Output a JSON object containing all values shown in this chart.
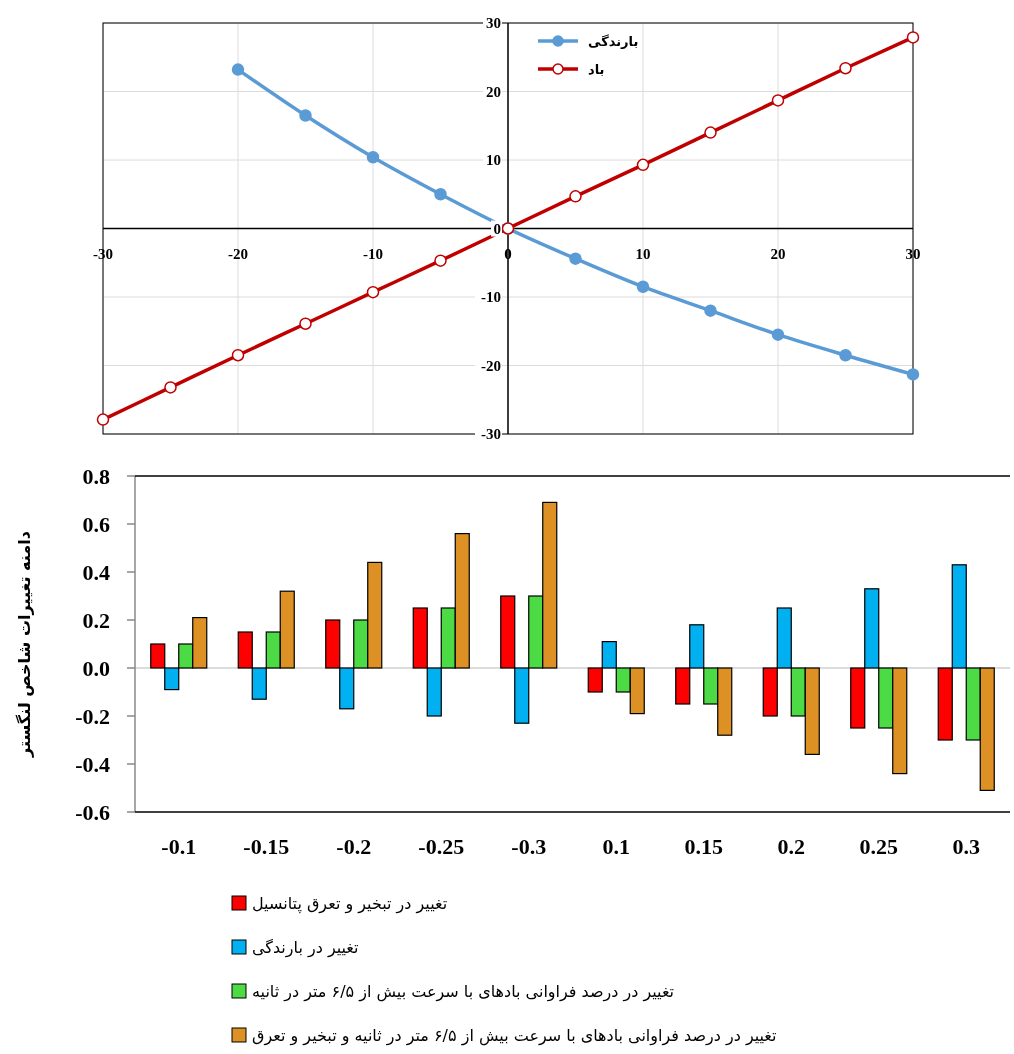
{
  "chart_data": [
    {
      "type": "line",
      "xlim": [
        -30,
        30
      ],
      "ylim": [
        -30,
        30
      ],
      "xticks": [
        -30,
        -20,
        -10,
        0,
        10,
        20,
        30
      ],
      "yticks": [
        -30,
        -20,
        -10,
        0,
        10,
        20,
        30
      ],
      "grid": true,
      "legend": "top",
      "marker": "circle",
      "line_style": "solid",
      "series": [
        {
          "name": "بارندگی",
          "color": "#5b9bd5",
          "x": [
            -20,
            -15,
            -10,
            -5,
            0,
            5,
            10,
            15,
            20,
            25,
            30
          ],
          "values": [
            23.2,
            16.5,
            10.4,
            5.0,
            0,
            -4.4,
            -8.5,
            -12.0,
            -15.5,
            -18.5,
            -21.3
          ]
        },
        {
          "name": "باد",
          "color": "#c00000",
          "x": [
            -30,
            -25,
            -20,
            -15,
            -10,
            -5,
            0,
            5,
            10,
            15,
            20,
            25,
            30
          ],
          "values": [
            -27.9,
            -23.2,
            -18.5,
            -13.9,
            -9.3,
            -4.7,
            0,
            4.7,
            9.3,
            14.0,
            18.7,
            23.4,
            27.9
          ]
        }
      ]
    },
    {
      "type": "bar",
      "ylabel": "دامنه تغییرات شاخص لنگستر",
      "categories": [
        "-0.1",
        "-0.15",
        "-0.2",
        "-0.25",
        "-0.3",
        "0.1",
        "0.15",
        "0.2",
        "0.25",
        "0.3"
      ],
      "ylim": [
        -0.6,
        0.8
      ],
      "yticks": [
        {
          "value": -0.6,
          "label": "-0.6"
        },
        {
          "value": -0.4,
          "label": "-0.4"
        },
        {
          "value": -0.2,
          "label": "-0.2"
        },
        {
          "value": 0,
          "label": "0.0"
        },
        {
          "value": 0.2,
          "label": "0.2"
        },
        {
          "value": 0.4,
          "label": "0.4"
        },
        {
          "value": 0.6,
          "label": "0.6"
        },
        {
          "value": 0.8,
          "label": "0.8"
        }
      ],
      "grid": false,
      "legend": "bottom",
      "ref_lines": [
        {
          "axis": "y",
          "value": 0,
          "color": "#d0d0d0"
        }
      ],
      "series": [
        {
          "name": "تغییر در تبخیر و تعرق پتانسیل",
          "color": "#ff0000",
          "values": [
            0.1,
            0.15,
            0.2,
            0.25,
            0.3,
            -0.1,
            -0.15,
            -0.2,
            -0.25,
            -0.3
          ]
        },
        {
          "name": "تغییر در بارندگی",
          "color": "#00b0f0",
          "values": [
            -0.09,
            -0.13,
            -0.17,
            -0.2,
            -0.23,
            0.11,
            0.18,
            0.25,
            0.33,
            0.43
          ]
        },
        {
          "name": "تغییر در درصد فراوانی بادهای با سرعت بیش از ۶/۵ متر در ثانیه",
          "color": "#4cdb44",
          "values": [
            0.1,
            0.15,
            0.2,
            0.25,
            0.3,
            -0.1,
            -0.15,
            -0.2,
            -0.25,
            -0.3
          ]
        },
        {
          "name": "تغییر در درصد فراوانی بادهای با سرعت بیش از ۶/۵ متر در ثانیه و تبخیر و تعرق",
          "color": "#dd9125",
          "values": [
            0.21,
            0.32,
            0.44,
            0.56,
            0.69,
            -0.19,
            -0.28,
            -0.36,
            -0.44,
            -0.51
          ]
        }
      ]
    }
  ]
}
